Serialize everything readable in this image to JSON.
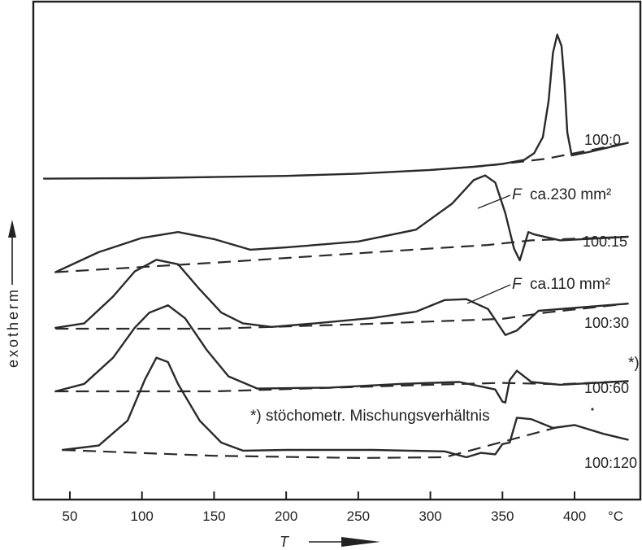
{
  "chart_data": {
    "type": "line",
    "title": "",
    "xlabel": "T",
    "ylabel": "exotherm",
    "x_unit": "°C",
    "xlim": [
      32,
      437
    ],
    "xticks": [
      50,
      100,
      150,
      200,
      250,
      300,
      350,
      400
    ],
    "grid": false,
    "legend": "none",
    "series": [
      {
        "name": "100:0",
        "x": [
          32,
          100,
          150,
          200,
          250,
          300,
          330,
          350,
          365,
          372,
          378,
          382,
          385,
          388,
          391,
          393,
          395,
          398,
          410,
          437
        ],
        "y": [
          -0.02,
          0.0,
          0.05,
          0.1,
          0.2,
          0.36,
          0.5,
          0.63,
          0.8,
          1.1,
          1.8,
          3.4,
          5.5,
          6.3,
          5.8,
          4.2,
          2.0,
          1.0,
          1.15,
          1.55
        ],
        "baseline_x": [
          300,
          340,
          380,
          437
        ],
        "baseline_y": [
          0.36,
          0.55,
          0.85,
          1.55
        ]
      },
      {
        "name": "100:15",
        "x": [
          40,
          70,
          100,
          125,
          150,
          175,
          200,
          250,
          290,
          315,
          330,
          338,
          345,
          352,
          358,
          362,
          368,
          372,
          390,
          437
        ],
        "y": [
          -0.5,
          0.35,
          0.95,
          1.2,
          0.9,
          0.45,
          0.55,
          0.8,
          1.3,
          2.4,
          3.4,
          3.6,
          3.3,
          2.0,
          0.5,
          0.0,
          1.2,
          1.1,
          0.85,
          1.0
        ],
        "baseline_x": [
          40,
          150,
          200,
          250,
          300,
          340,
          370,
          437
        ],
        "baseline_y": [
          -0.5,
          -0.1,
          0.1,
          0.3,
          0.5,
          0.65,
          0.85,
          1.0
        ]
      },
      {
        "name": "100:30",
        "x": [
          40,
          60,
          80,
          95,
          110,
          125,
          140,
          155,
          170,
          190,
          220,
          260,
          290,
          310,
          325,
          340,
          345,
          352,
          360,
          375,
          437
        ],
        "y": [
          0.05,
          0.3,
          1.8,
          3.2,
          3.85,
          3.6,
          2.2,
          0.9,
          0.3,
          0.1,
          0.3,
          0.6,
          0.95,
          1.6,
          1.65,
          1.1,
          0.5,
          -0.35,
          -0.1,
          1.0,
          1.4
        ],
        "baseline_x": [
          40,
          150,
          250,
          300,
          350,
          380,
          437
        ],
        "baseline_y": [
          0.0,
          0.0,
          0.25,
          0.4,
          0.55,
          0.9,
          1.4
        ],
        "annotation": "F ca.110 mm²"
      },
      {
        "name": "100:60",
        "x": [
          40,
          60,
          80,
          95,
          105,
          118,
          130,
          145,
          160,
          180,
          230,
          280,
          320,
          345,
          350,
          352,
          355,
          360,
          370,
          390,
          437
        ],
        "y": [
          0.0,
          0.4,
          1.8,
          3.4,
          4.2,
          4.6,
          3.9,
          2.2,
          0.8,
          0.15,
          0.2,
          0.4,
          0.5,
          0.1,
          -0.55,
          -0.6,
          0.6,
          1.1,
          0.5,
          0.35,
          0.55
        ],
        "baseline_x": [
          40,
          150,
          300,
          350,
          390,
          437
        ],
        "baseline_y": [
          0.0,
          0.0,
          0.35,
          0.45,
          0.38,
          0.55
        ],
        "note": "*)"
      },
      {
        "name": "100:120",
        "x": [
          45,
          70,
          90,
          102,
          110,
          118,
          125,
          140,
          155,
          170,
          200,
          260,
          310,
          325,
          335,
          345,
          350,
          355,
          360,
          370,
          385,
          400,
          420,
          437
        ],
        "y": [
          0.0,
          0.3,
          2.0,
          4.8,
          6.3,
          6.0,
          4.5,
          2.0,
          0.5,
          -0.05,
          0.0,
          0.0,
          -0.1,
          -0.5,
          -0.2,
          -0.3,
          0.4,
          0.5,
          2.2,
          2.1,
          1.5,
          1.7,
          1.1,
          0.7
        ],
        "baseline_x": [
          45,
          150,
          250,
          310,
          390
        ],
        "baseline_y": [
          0.0,
          -0.4,
          -0.55,
          -0.5,
          1.6
        ]
      }
    ],
    "annotations": [
      {
        "text": "F",
        "label": "ca.230 mm²"
      },
      {
        "text": "F",
        "label": "ca.110 mm²"
      },
      {
        "text": "*)",
        "label": "stöchometr. Mischungsverhältnis"
      }
    ]
  },
  "axis": {
    "ylabel": "exotherm",
    "xlabel": "T",
    "unit": "°C",
    "tick_labels": [
      "50",
      "100",
      "150",
      "200",
      "250",
      "300",
      "350",
      "400"
    ]
  },
  "labels": {
    "ann1_F": "F",
    "ann1_text": "ca.230 mm²",
    "ann2_F": "F",
    "ann2_text": "ca.110 mm²",
    "star_note": "*)",
    "footnote": "*) stöchometr. Mischungsverhältnis"
  }
}
